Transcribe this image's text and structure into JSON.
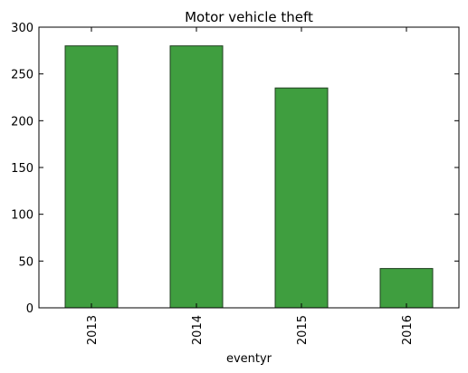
{
  "chart_data": {
    "type": "bar",
    "title": "Motor vehicle theft",
    "xlabel": "eventyr",
    "ylabel": "",
    "categories": [
      "2013",
      "2014",
      "2015",
      "2016"
    ],
    "values": [
      280,
      280,
      235,
      42
    ],
    "ylim": [
      0,
      300
    ],
    "yticks": [
      0,
      50,
      100,
      150,
      200,
      250,
      300
    ],
    "grid": false,
    "legend": "none",
    "colors": {
      "bar_fill": "#3f9e3f",
      "bar_edge": "#1f3f1f",
      "axis": "#000000"
    }
  }
}
